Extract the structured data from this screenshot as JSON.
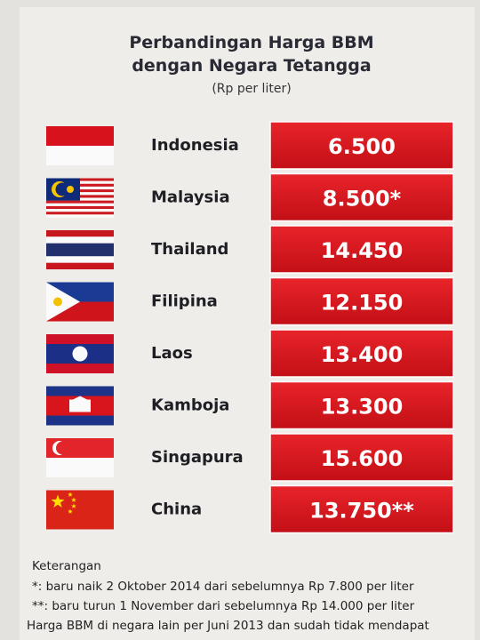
{
  "header": {
    "title_line1": "Perbandingan Harga BBM",
    "title_line2": "dengan Negara Tetangga",
    "subtitle": "(Rp per liter)"
  },
  "table": {
    "rows": [
      {
        "country": "Indonesia",
        "price": "6.500"
      },
      {
        "country": "Malaysia",
        "price": "8.500*"
      },
      {
        "country": "Thailand",
        "price": "14.450"
      },
      {
        "country": "Filipina",
        "price": "12.150"
      },
      {
        "country": "Laos",
        "price": "13.400"
      },
      {
        "country": "Kamboja",
        "price": "13.300"
      },
      {
        "country": "Singapura",
        "price": "15.600"
      },
      {
        "country": "China",
        "price": "13.750**"
      }
    ]
  },
  "notes": {
    "heading": "Keterangan",
    "lines": [
      "*: baru naik 2 Oktober 2014 dari sebelumnya Rp 7.800 per liter",
      "**: baru turun 1 November dari sebelumnya Rp 14.000 per liter",
      "Harga BBM di negara lain per Juni 2013 dan sudah tidak mendapat"
    ]
  }
}
